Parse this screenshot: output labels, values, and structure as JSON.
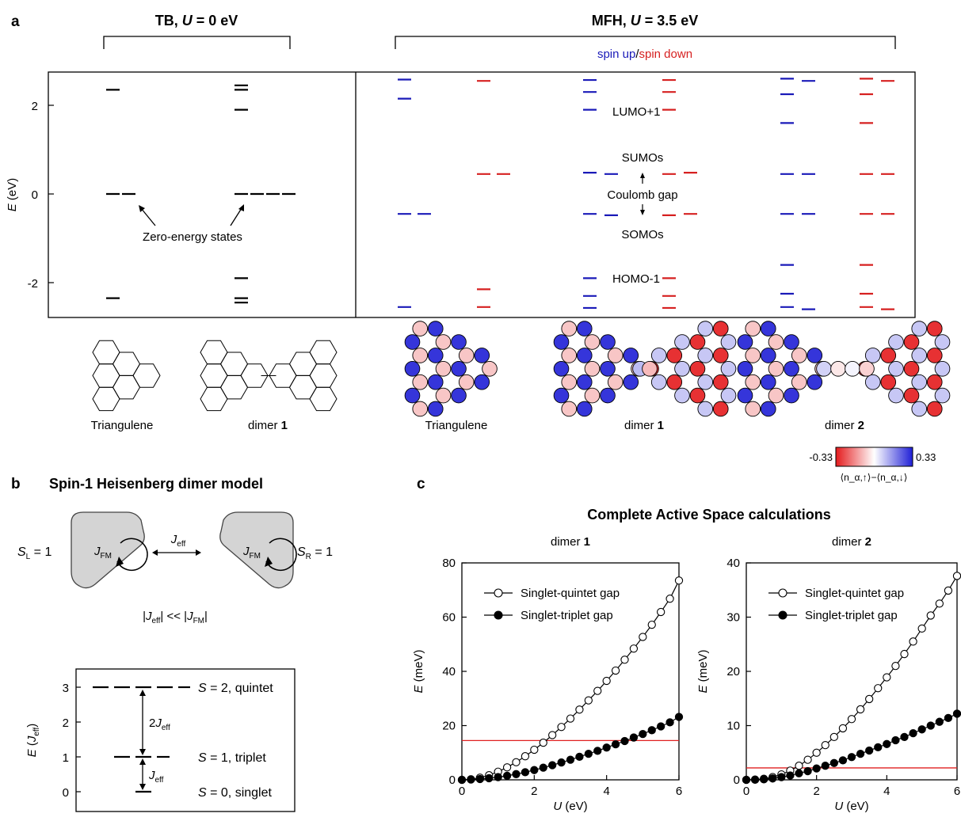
{
  "panel_a": {
    "label": "a",
    "tb_header": {
      "prefix": "TB, ",
      "var": "U",
      "suffix": " = 0 eV"
    },
    "mfh_header": {
      "prefix": "MFH, ",
      "var": "U",
      "suffix": " = 3.5 eV"
    },
    "spin_legend": {
      "up": "spin up",
      "sep": "/",
      "down": "spin down"
    },
    "ylabel": {
      "var": "E",
      "unit": " (eV)"
    },
    "yticks": [
      "2",
      "0",
      "-2"
    ],
    "annotations": {
      "zero_energy": "Zero-energy states",
      "lumo1": "LUMO+1",
      "sumos": "SUMOs",
      "coulomb": "Coulomb gap",
      "somos": "SOMOs",
      "homo1": "HOMO-1"
    },
    "molecules": {
      "triangulene_tb": "Triangulene",
      "dimer1_tb": {
        "text": "dimer ",
        "num": "1"
      },
      "triangulene_mfh": "Triangulene",
      "dimer1_mfh": {
        "text": "dimer ",
        "num": "1"
      },
      "dimer2_mfh": {
        "text": "dimer ",
        "num": "2"
      }
    },
    "colorbar": {
      "min": "-0.33",
      "max": "0.33",
      "label": "⟨n_α,↑⟩−⟨n_α,↓⟩",
      "low_color": "#e41a1c",
      "high_color": "#1f1fd6"
    },
    "colors": {
      "up": "#1a1ab8",
      "down": "#d62020"
    },
    "levels": {
      "tb_triangulene": [
        2.35,
        0,
        0,
        -2.35
      ],
      "tb_dimer1": [
        2.45,
        2.35,
        1.9,
        0,
        0,
        0,
        0,
        -1.9,
        -2.35,
        -2.45
      ],
      "mfh_triangulene_up": [
        2.58,
        2.15,
        -0.45,
        -0.45,
        -2.55
      ],
      "mfh_triangulene_down": [
        2.55,
        0.45,
        0.45,
        -2.15,
        -2.55
      ],
      "mfh_dimer1_up": [
        2.57,
        2.3,
        1.9,
        0.48,
        0.45,
        -0.45,
        -0.48,
        -1.9,
        -2.3,
        -2.57
      ],
      "mfh_dimer1_down": [
        2.57,
        2.3,
        1.9,
        0.45,
        0.48,
        -0.48,
        -0.45,
        -1.9,
        -2.3,
        -2.57
      ],
      "mfh_dimer2_up": [
        2.6,
        2.55,
        2.25,
        1.6,
        0.45,
        0.45,
        -0.45,
        -0.45,
        -1.6,
        -2.25,
        -2.55,
        -2.6
      ],
      "mfh_dimer2_down": [
        2.6,
        2.55,
        2.25,
        1.6,
        0.45,
        0.45,
        -0.45,
        -0.45,
        -1.6,
        -2.25,
        -2.55,
        -2.6
      ]
    }
  },
  "panel_b": {
    "label": "b",
    "title": "Spin-1 Heisenberg dimer model",
    "sl": {
      "var": "S",
      "sub": "L",
      "rest": " = 1"
    },
    "sr": {
      "var": "S",
      "sub": "R",
      "rest": " = 1"
    },
    "jfm": {
      "var": "J",
      "sub": "FM"
    },
    "jeff": {
      "var": "J",
      "sub": "eff"
    },
    "relation": {
      "bar": "|",
      "var": "J",
      "sub1": "eff",
      "mid": "  <<  ",
      "sub2": "FM"
    },
    "ylabel": {
      "var": "E",
      "paren_open": " (",
      "sub_var": "J",
      "sub": "eff",
      "paren_close": ")"
    },
    "yticks": [
      "3",
      "2",
      "1",
      "0"
    ],
    "gap_2j": {
      "coef": "2",
      "var": "J",
      "sub": "eff"
    },
    "gap_j": {
      "var": "J",
      "sub": "eff"
    },
    "states": [
      {
        "var": "S",
        "rest": " = 2, quintet"
      },
      {
        "var": "S",
        "rest": " = 1, triplet"
      },
      {
        "var": "S",
        "rest": " = 0, singlet"
      }
    ]
  },
  "panel_c": {
    "label": "c",
    "title": "Complete Active Space calculations"
  },
  "chart_data": [
    {
      "type": "line",
      "title": "dimer 1",
      "xlabel": "U (eV)",
      "ylabel": "E (meV)",
      "xlim": [
        0,
        6
      ],
      "ylim": [
        0,
        80
      ],
      "xticks": [
        0,
        2,
        4,
        6
      ],
      "yticks": [
        0,
        20,
        40,
        60,
        80
      ],
      "legend": "top-left",
      "x": [
        0,
        0.25,
        0.5,
        0.75,
        1.0,
        1.25,
        1.5,
        1.75,
        2.0,
        2.25,
        2.5,
        2.75,
        3.0,
        3.25,
        3.5,
        3.75,
        4.0,
        4.25,
        4.5,
        4.75,
        5.0,
        5.25,
        5.5,
        5.75,
        6.0
      ],
      "series": [
        {
          "name": "Singlet-quintet gap",
          "marker": "open",
          "values": [
            0,
            0.2,
            0.8,
            1.7,
            3.0,
            4.6,
            6.5,
            8.7,
            11.1,
            13.7,
            16.5,
            19.5,
            22.6,
            25.9,
            29.3,
            32.8,
            36.5,
            40.3,
            44.3,
            48.4,
            52.7,
            57.2,
            61.9,
            66.8,
            73.5
          ]
        },
        {
          "name": "Singlet-triplet gap",
          "marker": "filled",
          "values": [
            0,
            0.1,
            0.3,
            0.6,
            1.0,
            1.5,
            2.1,
            2.8,
            3.6,
            4.5,
            5.4,
            6.4,
            7.4,
            8.5,
            9.6,
            10.7,
            11.9,
            13.1,
            14.3,
            15.6,
            16.9,
            18.3,
            19.7,
            21.2,
            23.2
          ]
        }
      ],
      "hline": {
        "y": 14.5,
        "color": "#e02020"
      }
    },
    {
      "type": "line",
      "title": "dimer 2",
      "xlabel": "U (eV)",
      "ylabel": "E (meV)",
      "xlim": [
        0,
        6
      ],
      "ylim": [
        0,
        40
      ],
      "xticks": [
        0,
        2,
        4,
        6
      ],
      "yticks": [
        0,
        10,
        20,
        30,
        40
      ],
      "legend": "top-left",
      "x": [
        0,
        0.25,
        0.5,
        0.75,
        1.0,
        1.25,
        1.5,
        1.75,
        2.0,
        2.25,
        2.5,
        2.75,
        3.0,
        3.25,
        3.5,
        3.75,
        4.0,
        4.25,
        4.5,
        4.75,
        5.0,
        5.25,
        5.5,
        5.75,
        6.0
      ],
      "series": [
        {
          "name": "Singlet-quintet gap",
          "marker": "open",
          "values": [
            0,
            0.05,
            0.2,
            0.5,
            1.0,
            1.7,
            2.6,
            3.7,
            5.0,
            6.4,
            7.9,
            9.5,
            11.2,
            13.0,
            14.9,
            16.9,
            18.9,
            21.0,
            23.2,
            25.5,
            27.9,
            30.3,
            32.5,
            34.9,
            37.6
          ]
        },
        {
          "name": "Singlet-triplet gap",
          "marker": "filled",
          "values": [
            0,
            0.02,
            0.1,
            0.25,
            0.5,
            0.8,
            1.2,
            1.6,
            2.1,
            2.6,
            3.1,
            3.6,
            4.2,
            4.8,
            5.4,
            6.0,
            6.6,
            7.3,
            7.9,
            8.6,
            9.3,
            10.0,
            10.7,
            11.4,
            12.2
          ]
        }
      ],
      "hline": {
        "y": 2.2,
        "color": "#e02020"
      }
    }
  ]
}
